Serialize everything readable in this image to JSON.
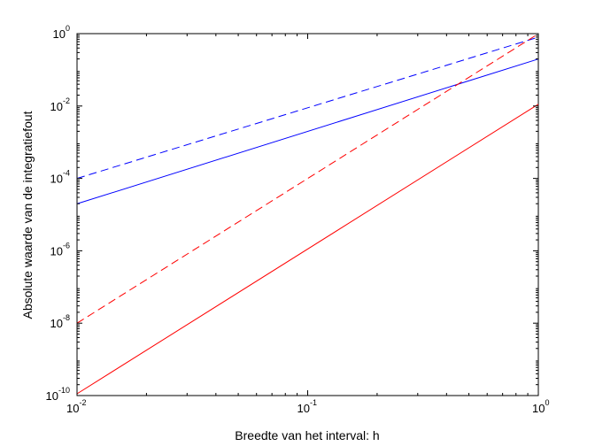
{
  "chart_data": {
    "type": "line",
    "title": "",
    "xlabel": "Breedte van het interval: h",
    "ylabel": "Absolute waarde van de integratiefout",
    "xscale": "log",
    "yscale": "log",
    "xlim": [
      0.01,
      1
    ],
    "ylim": [
      1e-10,
      1
    ],
    "x_ticks": [
      {
        "base": "10",
        "exp": "-2",
        "value": 0.01
      },
      {
        "base": "10",
        "exp": "-1",
        "value": 0.1
      },
      {
        "base": "10",
        "exp": "0",
        "value": 1
      }
    ],
    "y_ticks": [
      {
        "base": "10",
        "exp": "-10",
        "value": 1e-10
      },
      {
        "base": "10",
        "exp": "-8",
        "value": 1e-08
      },
      {
        "base": "10",
        "exp": "-6",
        "value": 1e-06
      },
      {
        "base": "10",
        "exp": "-4",
        "value": 0.0001
      },
      {
        "base": "10",
        "exp": "-2",
        "value": 0.01
      },
      {
        "base": "10",
        "exp": "0",
        "value": 1
      }
    ],
    "grid": false,
    "series": [
      {
        "color": "#0000ff",
        "dash": "dashed",
        "x": [
          0.01,
          1
        ],
        "y": [
          9.98e-05,
          0.8
        ]
      },
      {
        "color": "#0000ff",
        "dash": "solid",
        "x": [
          0.01,
          1
        ],
        "y": [
          1.99e-05,
          0.199
        ]
      },
      {
        "color": "#ff0000",
        "dash": "dashed",
        "x": [
          0.01,
          1
        ],
        "y": [
          9.99e-09,
          0.99
        ]
      },
      {
        "color": "#ff0000",
        "dash": "solid",
        "x": [
          0.01,
          1
        ],
        "y": [
          1.12e-10,
          0.0112
        ]
      }
    ]
  }
}
